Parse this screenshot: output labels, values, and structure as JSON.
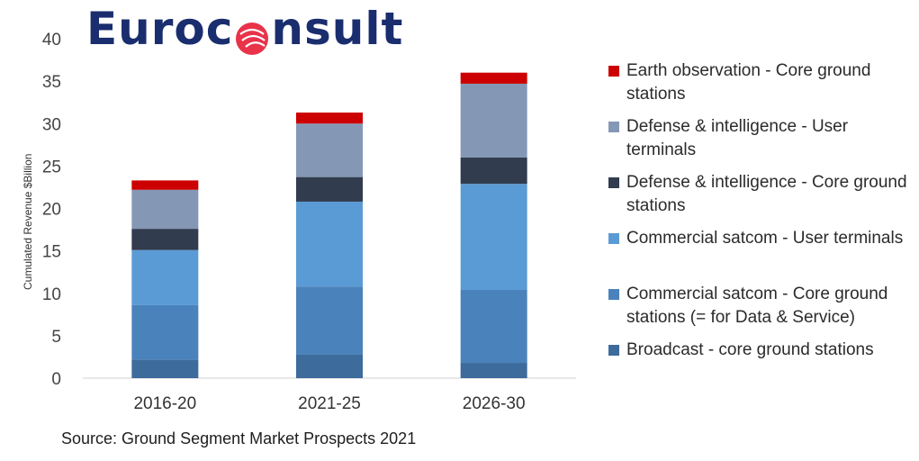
{
  "logo": {
    "text_pre": "Euroc",
    "text_post": "nsult",
    "colors": {
      "text": "#1a2d6e",
      "mark": "#e8334a"
    }
  },
  "source": "Source: Ground Segment Market Prospects 2021",
  "chart_data": {
    "type": "bar",
    "stacked": true,
    "categories": [
      "2016-20",
      "2021-25",
      "2026-30"
    ],
    "ylabel": "Cumulated Revenue $Billion",
    "ylim": [
      0,
      40
    ],
    "yticks": [
      0,
      5,
      10,
      15,
      20,
      25,
      30,
      35,
      40
    ],
    "grid": false,
    "legend_position": "right",
    "series": [
      {
        "name": "Broadcast - core ground stations",
        "color": "#3d6b9c",
        "values": [
          2.2,
          2.8,
          1.8
        ]
      },
      {
        "name": "Commercial satcom - Core ground stations (= for Data & Service)",
        "color": "#4a82bb",
        "values": [
          6.4,
          8.0,
          8.6
        ]
      },
      {
        "name": "Commercial satcom - User terminals",
        "color": "#5b9bd5",
        "values": [
          6.5,
          10.0,
          12.5
        ]
      },
      {
        "name": "Defense & intelligence - Core ground stations",
        "color": "#323c4f",
        "values": [
          2.5,
          2.9,
          3.1
        ]
      },
      {
        "name": "Defense & intelligence - User terminals",
        "color": "#8498b5",
        "values": [
          4.6,
          6.3,
          8.7
        ]
      },
      {
        "name": "Earth observation - Core ground stations",
        "color": "#cc0000",
        "values": [
          1.1,
          1.3,
          1.3
        ]
      }
    ],
    "legend_order": [
      5,
      4,
      3,
      2,
      1,
      0
    ]
  }
}
